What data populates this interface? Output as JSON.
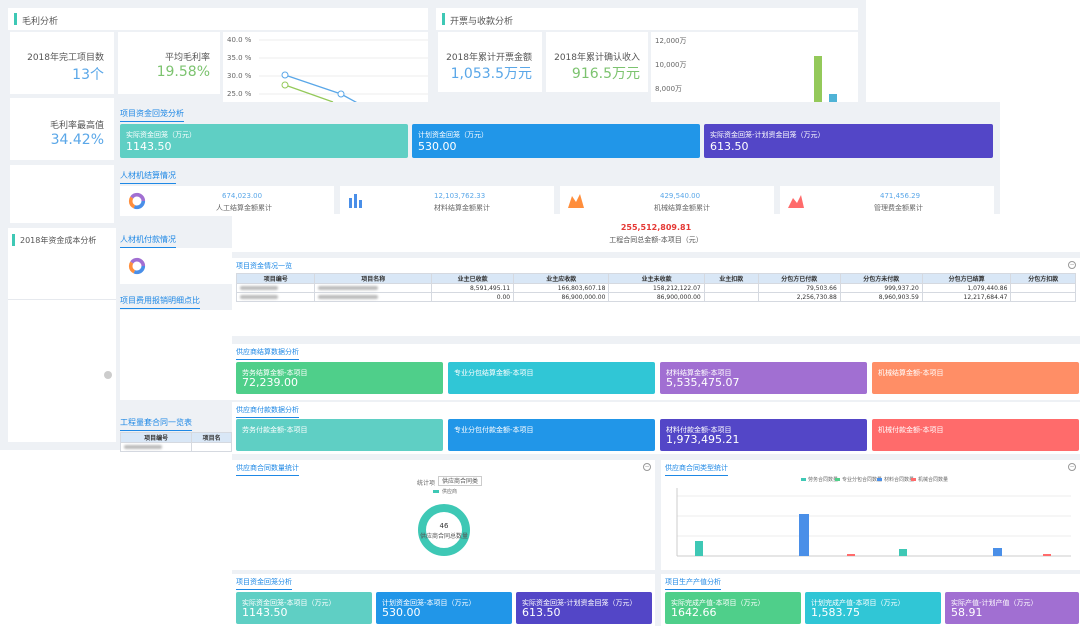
{
  "gross": {
    "title": "毛利分析",
    "completed_label": "2018年完工项目数",
    "completed_value": "13个",
    "avg_label": "平均毛利率",
    "avg_value": "19.58%",
    "max_label": "毛利率最高值",
    "max_value": "34.42%",
    "yticks": [
      "40.0 %",
      "35.0 %",
      "30.0 %",
      "25.0 %"
    ]
  },
  "invoice": {
    "title": "开票与收款分析",
    "total_label": "2018年累计开票金额",
    "total_value": "1,053.5万元",
    "confirm_label": "2018年累计确认收入",
    "confirm_value": "916.5万元",
    "yticks": [
      "12,000万",
      "10,000万",
      "8,000万"
    ]
  },
  "cost": {
    "title": "2018年资金成本分析"
  },
  "fund_collect": {
    "title": "项目资金回笼分析",
    "tiles": [
      {
        "label": "实际资金回笼（万元）",
        "value": "1143.50",
        "color": "#5fcfc4"
      },
      {
        "label": "计划资金回笼（万元）",
        "value": "530.00",
        "color": "#2196e8"
      },
      {
        "label": "实际资金回笼-计划资金回笼（万元）",
        "value": "613.50",
        "color": "#5346c7"
      }
    ]
  },
  "material": {
    "title": "人材机结算情况",
    "items": [
      {
        "value": "674,023.00",
        "label": "人工结算金额累计"
      },
      {
        "value": "12,103,762.33",
        "label": "材料结算金额累计"
      },
      {
        "value": "429,540.00",
        "label": "机械结算金额累计"
      },
      {
        "value": "471,456.29",
        "label": "管理费金额累计"
      }
    ]
  },
  "pay": {
    "title": "人材机付款情况"
  },
  "reimb": {
    "title": "项目费用报销明细点比"
  },
  "contract": {
    "title": "工程量套合同一览表",
    "col1": "项目编号",
    "col2": "项目名"
  },
  "project": {
    "total": "255,512,809.81",
    "total_label": "工程合同总金额-本项目（元）"
  },
  "fund_list": {
    "title": "项目资金情况一览",
    "headers": [
      "项目编号",
      "项目名称",
      "业主已收款",
      "业主应收款",
      "业主未收款",
      "业主扣款",
      "分包方已付款",
      "分包方未付款",
      "分包方已结算",
      "分包方扣款"
    ],
    "rows": [
      [
        "8,591,495.11",
        "166,803,607.18",
        "158,212,122.07",
        "79,503.66",
        "999,937.20",
        "1,079,440.86"
      ],
      [
        "0.00",
        "86,900,000.00",
        "86,900,000.00",
        "2,256,730.88",
        "8,960,903.59",
        "12,217,684.47"
      ]
    ]
  },
  "supplier_settle": {
    "title": "供应商结算数据分析",
    "tiles": [
      {
        "label": "劳务结算金额-本项目",
        "value": "72,239.00",
        "color": "#4fcf8a"
      },
      {
        "label": "专业分包结算金额-本项目",
        "value": "",
        "color": "#30c6d6"
      },
      {
        "label": "材料结算金额-本项目",
        "value": "5,535,475.07",
        "color": "#a16fd2"
      },
      {
        "label": "机械结算金额-本项目",
        "value": "",
        "color": "#ff8e66"
      }
    ]
  },
  "supplier_pay": {
    "title": "供应商付款数据分析",
    "tiles": [
      {
        "label": "劳务付款金额-本项目",
        "value": "",
        "color": "#5fcfc4"
      },
      {
        "label": "专业分包付款金额-本项目",
        "value": "",
        "color": "#2196e8"
      },
      {
        "label": "材料付款金额-本项目",
        "value": "1,973,495.21",
        "color": "#5346c7"
      },
      {
        "label": "机械付款金额-本项目",
        "value": "",
        "color": "#ff6b6b"
      }
    ]
  },
  "contract_count": {
    "title": "供应商合同数量统计",
    "stat_label": "统计项",
    "select": "供应商合同类",
    "legend": "供应商",
    "center_value": "46",
    "center_label": "供应商合同总数量"
  },
  "contract_type": {
    "title": "供应商合同类型统计",
    "legend": [
      {
        "name": "劳务合同数量",
        "color": "#3ec8b5"
      },
      {
        "name": "专业分包合同数量",
        "color": "#4fcf8a"
      },
      {
        "name": "材料合同数量",
        "color": "#4a8fe8"
      },
      {
        "name": "机械合同数量",
        "color": "#ff6b6b"
      }
    ]
  },
  "fund_collect2": {
    "title": "项目资金回笼分析",
    "tiles": [
      {
        "label": "实际资金回笼-本项目（万元）",
        "value": "1143.50",
        "color": "#5fcfc4"
      },
      {
        "label": "计划资金回笼-本项目（万元）",
        "value": "530.00",
        "color": "#2196e8"
      },
      {
        "label": "实际资金回笼-计划资金回笼（万元）",
        "value": "613.50",
        "color": "#5346c7"
      }
    ]
  },
  "output": {
    "title": "项目生产产值分析",
    "tiles": [
      {
        "label": "实际完成产值-本项目（万元）",
        "value": "1642.66",
        "color": "#4fcf8a"
      },
      {
        "label": "计划完成产值-本项目（万元）",
        "value": "1,583.75",
        "color": "#30c6d6"
      },
      {
        "label": "实际产值-计划产值（万元）",
        "value": "58.91",
        "color": "#a16fd2"
      }
    ]
  }
}
